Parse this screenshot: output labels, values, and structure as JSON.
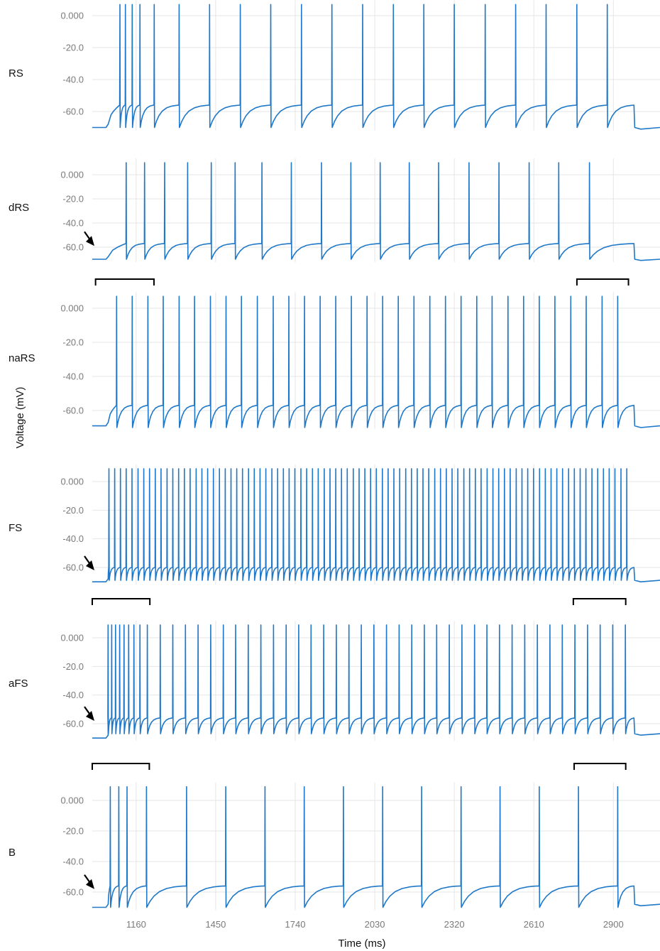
{
  "chart_data": {
    "type": "line",
    "xlabel": "Time (ms)",
    "ylabel": "Voltage (mV)",
    "x_ticks": [
      "1160",
      "1450",
      "1740",
      "2030",
      "2320",
      "2610",
      "2900"
    ],
    "x_tick_values": [
      1160,
      1450,
      1740,
      2030,
      2320,
      2610,
      2900
    ],
    "xlim": [
      1000,
      3070
    ],
    "y_ticks": [
      "0.000",
      "-20.0",
      "-40.0",
      "-60.0"
    ],
    "y_tick_values": [
      0,
      -20,
      -40,
      -60
    ],
    "ylim": [
      -72,
      10
    ],
    "stimulus_window_ms": [
      1050,
      2975
    ],
    "series": [
      {
        "name": "RS",
        "rest_mv": -70,
        "peak_mv": 7,
        "plateau_mv": -56,
        "trough_mv": -70,
        "post_mv": -70,
        "spike_times_ms": [
          1100,
          1120,
          1145,
          1173,
          1225,
          1316,
          1427,
          1539,
          1650,
          1762,
          1873,
          1985,
          2097,
          2208,
          2319,
          2432,
          2543,
          2654,
          2766,
          2877
        ],
        "arrow": false,
        "brackets": []
      },
      {
        "name": "dRS",
        "rest_mv": -70,
        "peak_mv": 10,
        "plateau_mv": -57,
        "trough_mv": -70,
        "post_mv": -70,
        "spike_times_ms": [
          1123,
          1190,
          1263,
          1347,
          1433,
          1520,
          1618,
          1725,
          1835,
          1942,
          2049,
          2155,
          2262,
          2373,
          2482,
          2592,
          2700,
          2812
        ],
        "arrow": true,
        "brackets": []
      },
      {
        "name": "naRS",
        "rest_mv": -69,
        "peak_mv": 7,
        "plateau_mv": -57,
        "trough_mv": -70,
        "post_mv": -69,
        "spike_times_ms": [
          1088,
          1145,
          1202,
          1258,
          1316,
          1372,
          1430,
          1487,
          1543,
          1601,
          1659,
          1716,
          1773,
          1830,
          1887,
          1944,
          2001,
          2058,
          2115,
          2172,
          2230,
          2287,
          2344,
          2401,
          2457,
          2515,
          2572,
          2629,
          2686,
          2744,
          2800,
          2858,
          2915
        ],
        "arrow": false,
        "brackets": [
          [
            1012,
            1225
          ],
          [
            2767,
            2955
          ]
        ]
      },
      {
        "name": "FS",
        "rest_mv": -70,
        "peak_mv": 9,
        "plateau_mv": -60,
        "trough_mv": -69,
        "post_mv": -69,
        "spike_times_ms": [
          1060,
          1081,
          1102,
          1123,
          1144,
          1166,
          1187,
          1208,
          1229,
          1250,
          1272,
          1293,
          1314,
          1335,
          1356,
          1378,
          1399,
          1420,
          1441,
          1463,
          1484,
          1505,
          1526,
          1547,
          1569,
          1590,
          1611,
          1632,
          1654,
          1675,
          1696,
          1717,
          1738,
          1760,
          1781,
          1802,
          1823,
          1845,
          1866,
          1887,
          1908,
          1929,
          1951,
          1972,
          1993,
          2014,
          2035,
          2057,
          2078,
          2099,
          2120,
          2142,
          2163,
          2184,
          2205,
          2226,
          2248,
          2269,
          2290,
          2311,
          2332,
          2354,
          2375,
          2396,
          2417,
          2439,
          2460,
          2481,
          2502,
          2523,
          2545,
          2566,
          2587,
          2608,
          2630,
          2651,
          2672,
          2693,
          2714,
          2736,
          2757,
          2778,
          2799,
          2821,
          2842,
          2863,
          2884,
          2905,
          2927,
          2948
        ],
        "arrow": true,
        "brackets": []
      },
      {
        "name": "aFS",
        "rest_mv": -70,
        "peak_mv": 9,
        "plateau_mv": -56,
        "trough_mv": -67,
        "post_mv": -67,
        "spike_times_ms": [
          1057,
          1070,
          1084,
          1099,
          1115,
          1132,
          1151,
          1173,
          1200,
          1247,
          1293,
          1339,
          1385,
          1431,
          1477,
          1522,
          1568,
          1614,
          1660,
          1706,
          1752,
          1797,
          1843,
          1889,
          1935,
          1980,
          2026,
          2072,
          2118,
          2164,
          2210,
          2255,
          2301,
          2347,
          2393,
          2438,
          2484,
          2530,
          2576,
          2622,
          2668,
          2713,
          2759,
          2805,
          2851,
          2897,
          2943
        ],
        "arrow": true,
        "brackets": [
          [
            1000,
            1210
          ],
          [
            2754,
            2945
          ]
        ]
      },
      {
        "name": "B",
        "rest_mv": -70,
        "peak_mv": 9,
        "plateau_mv": -56,
        "trough_mv": -70,
        "post_mv": -68,
        "spike_times_ms": [
          1065,
          1096,
          1126,
          1197,
          1343,
          1486,
          1629,
          1772,
          1915,
          2058,
          2200,
          2344,
          2486,
          2629,
          2772,
          2915
        ],
        "arrow": true,
        "brackets": [
          [
            1000,
            1208
          ],
          [
            2757,
            2945
          ]
        ]
      }
    ]
  }
}
